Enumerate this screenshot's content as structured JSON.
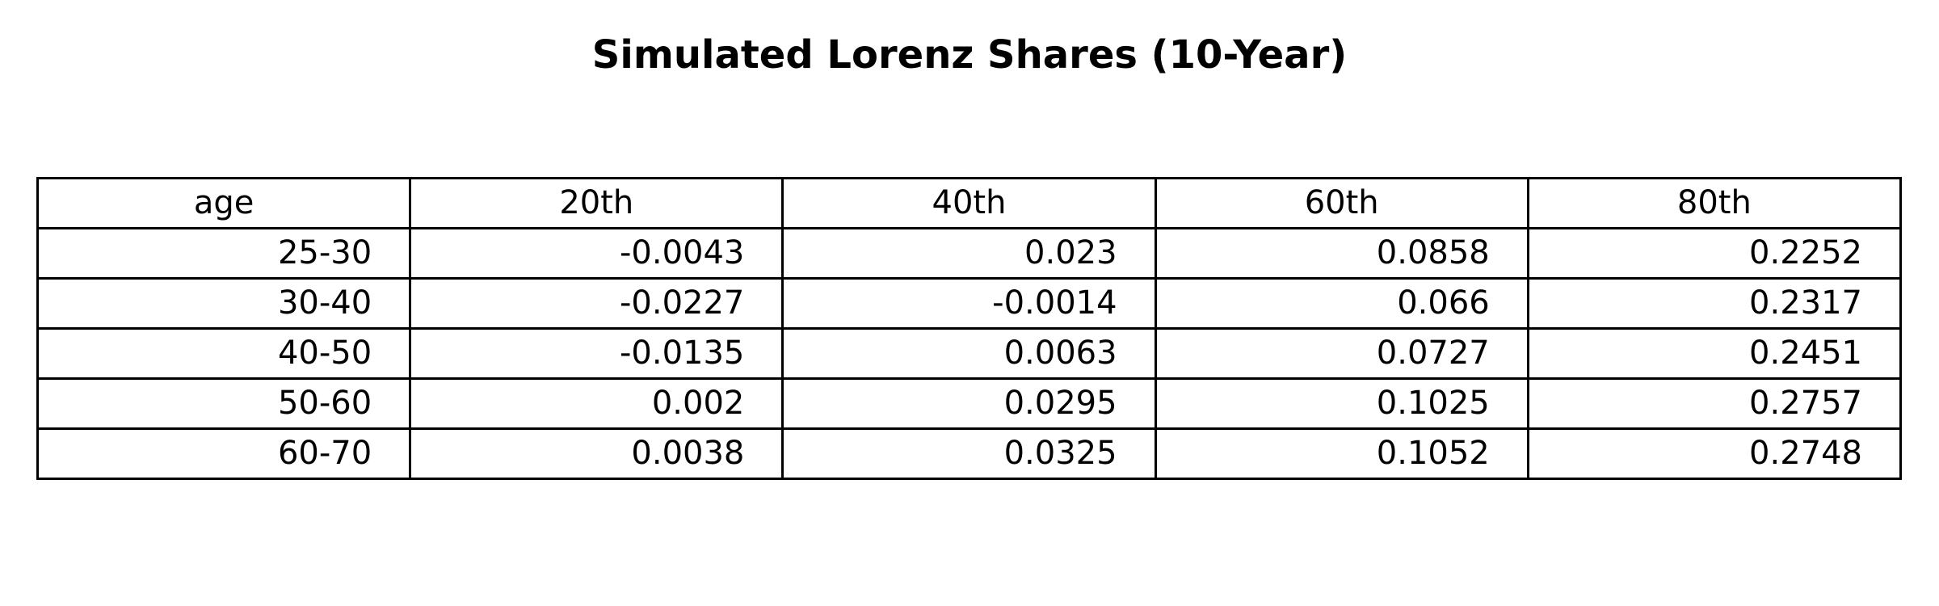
{
  "chart_data": {
    "type": "table",
    "title": "Simulated Lorenz Shares (10-Year)",
    "columns": [
      "age",
      "20th",
      "40th",
      "60th",
      "80th"
    ],
    "rows": [
      [
        "25-30",
        "-0.0043",
        "0.023",
        "0.0858",
        "0.2252"
      ],
      [
        "30-40",
        "-0.0227",
        "-0.0014",
        "0.066",
        "0.2317"
      ],
      [
        "40-50",
        "-0.0135",
        "0.0063",
        "0.0727",
        "0.2451"
      ],
      [
        "50-60",
        "0.002",
        "0.0295",
        "0.1025",
        "0.2757"
      ],
      [
        "60-70",
        "0.0038",
        "0.0325",
        "0.1052",
        "0.2748"
      ]
    ]
  }
}
